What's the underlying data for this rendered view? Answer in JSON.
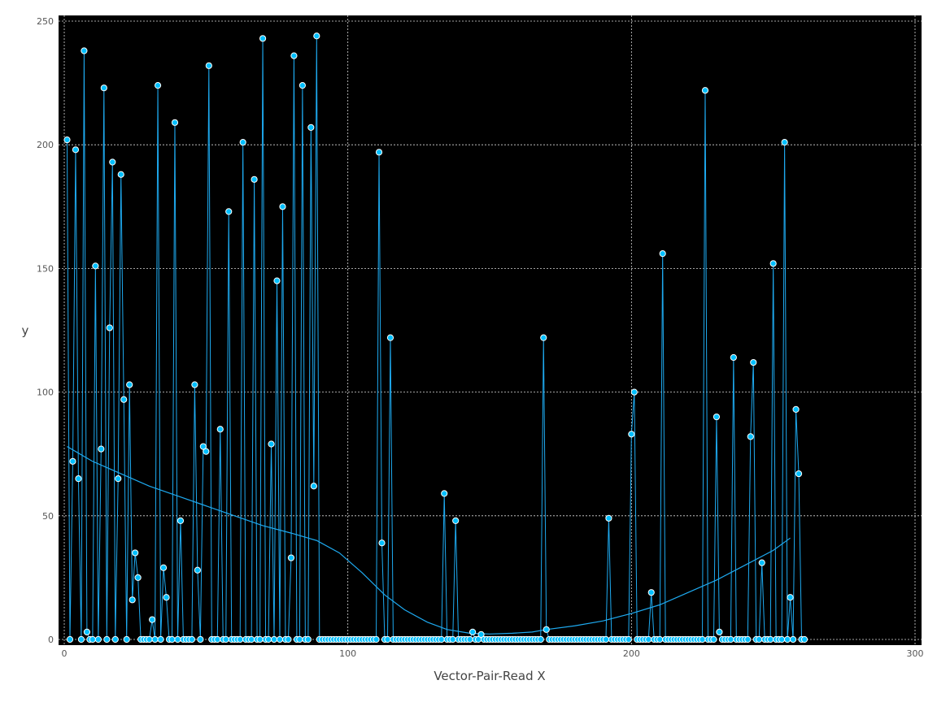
{
  "chart_data": {
    "type": "scatter",
    "xlabel": "Vector-Pair-Read X",
    "ylabel": "y",
    "xlim": [
      0,
      300
    ],
    "ylim": [
      0,
      250
    ],
    "x_ticks": [
      0,
      100,
      200,
      300
    ],
    "y_ticks": [
      0,
      50,
      100,
      150,
      200,
      250
    ],
    "grid": true,
    "background": "#000000",
    "colors": {
      "marker_fill": "#00bfff",
      "marker_edge": "#ffffff",
      "line": "#1eaaf0",
      "grid": "#ffffff"
    },
    "series": [
      {
        "values": [
          [
            1,
            202
          ],
          [
            2,
            0
          ],
          [
            3,
            72
          ],
          [
            4,
            198
          ],
          [
            5,
            65
          ],
          [
            6,
            0
          ],
          [
            7,
            238
          ],
          [
            8,
            3
          ],
          [
            9,
            0
          ],
          [
            10,
            0
          ],
          [
            11,
            151
          ],
          [
            12,
            0
          ],
          [
            13,
            77
          ],
          [
            14,
            223
          ],
          [
            15,
            0
          ],
          [
            16,
            126
          ],
          [
            17,
            193
          ],
          [
            18,
            0
          ],
          [
            19,
            65
          ],
          [
            20,
            188
          ],
          [
            21,
            97
          ],
          [
            22,
            0
          ],
          [
            23,
            103
          ],
          [
            24,
            16
          ],
          [
            25,
            35
          ],
          [
            26,
            25
          ],
          [
            27,
            0
          ],
          [
            28,
            0
          ],
          [
            29,
            0
          ],
          [
            30,
            0
          ],
          [
            31,
            8
          ],
          [
            32,
            0
          ],
          [
            33,
            224
          ],
          [
            34,
            0
          ],
          [
            35,
            29
          ],
          [
            36,
            17
          ],
          [
            37,
            0
          ],
          [
            38,
            0
          ],
          [
            39,
            209
          ],
          [
            40,
            0
          ],
          [
            41,
            48
          ],
          [
            42,
            0
          ],
          [
            43,
            0
          ],
          [
            44,
            0
          ],
          [
            45,
            0
          ],
          [
            46,
            103
          ],
          [
            47,
            28
          ],
          [
            48,
            0
          ],
          [
            49,
            78
          ],
          [
            50,
            76
          ],
          [
            51,
            232
          ],
          [
            52,
            0
          ],
          [
            53,
            0
          ],
          [
            54,
            0
          ],
          [
            55,
            85
          ],
          [
            56,
            0
          ],
          [
            57,
            0
          ],
          [
            58,
            173
          ],
          [
            59,
            0
          ],
          [
            60,
            0
          ],
          [
            61,
            0
          ],
          [
            62,
            0
          ],
          [
            63,
            201
          ],
          [
            64,
            0
          ],
          [
            65,
            0
          ],
          [
            66,
            0
          ],
          [
            67,
            186
          ],
          [
            68,
            0
          ],
          [
            69,
            0
          ],
          [
            70,
            243
          ],
          [
            71,
            0
          ],
          [
            72,
            0
          ],
          [
            73,
            79
          ],
          [
            74,
            0
          ],
          [
            75,
            145
          ],
          [
            76,
            0
          ],
          [
            77,
            175
          ],
          [
            78,
            0
          ],
          [
            79,
            0
          ],
          [
            80,
            33
          ],
          [
            81,
            236
          ],
          [
            82,
            0
          ],
          [
            83,
            0
          ],
          [
            84,
            224
          ],
          [
            85,
            0
          ],
          [
            86,
            0
          ],
          [
            87,
            207
          ],
          [
            88,
            62
          ],
          [
            89,
            244
          ],
          [
            90,
            0
          ],
          [
            91,
            0
          ],
          [
            92,
            0
          ],
          [
            93,
            0
          ],
          [
            94,
            0
          ],
          [
            95,
            0
          ],
          [
            96,
            0
          ],
          [
            97,
            0
          ],
          [
            98,
            0
          ],
          [
            99,
            0
          ],
          [
            100,
            0
          ],
          [
            101,
            0
          ],
          [
            102,
            0
          ],
          [
            103,
            0
          ],
          [
            104,
            0
          ],
          [
            105,
            0
          ],
          [
            106,
            0
          ],
          [
            107,
            0
          ],
          [
            108,
            0
          ],
          [
            109,
            0
          ],
          [
            110,
            0
          ],
          [
            111,
            197
          ],
          [
            112,
            39
          ],
          [
            113,
            0
          ],
          [
            114,
            0
          ],
          [
            115,
            122
          ],
          [
            116,
            0
          ],
          [
            117,
            0
          ],
          [
            118,
            0
          ],
          [
            119,
            0
          ],
          [
            120,
            0
          ],
          [
            121,
            0
          ],
          [
            122,
            0
          ],
          [
            123,
            0
          ],
          [
            124,
            0
          ],
          [
            125,
            0
          ],
          [
            126,
            0
          ],
          [
            127,
            0
          ],
          [
            128,
            0
          ],
          [
            129,
            0
          ],
          [
            130,
            0
          ],
          [
            131,
            0
          ],
          [
            132,
            0
          ],
          [
            133,
            0
          ],
          [
            134,
            59
          ],
          [
            135,
            0
          ],
          [
            136,
            0
          ],
          [
            137,
            0
          ],
          [
            138,
            48
          ],
          [
            139,
            0
          ],
          [
            140,
            0
          ],
          [
            141,
            0
          ],
          [
            142,
            0
          ],
          [
            143,
            0
          ],
          [
            144,
            3
          ],
          [
            145,
            0
          ],
          [
            146,
            0
          ],
          [
            147,
            2
          ],
          [
            148,
            0
          ],
          [
            149,
            0
          ],
          [
            150,
            0
          ],
          [
            151,
            0
          ],
          [
            152,
            0
          ],
          [
            153,
            0
          ],
          [
            154,
            0
          ],
          [
            155,
            0
          ],
          [
            156,
            0
          ],
          [
            157,
            0
          ],
          [
            158,
            0
          ],
          [
            159,
            0
          ],
          [
            160,
            0
          ],
          [
            161,
            0
          ],
          [
            162,
            0
          ],
          [
            163,
            0
          ],
          [
            164,
            0
          ],
          [
            165,
            0
          ],
          [
            166,
            0
          ],
          [
            167,
            0
          ],
          [
            168,
            0
          ],
          [
            169,
            122
          ],
          [
            170,
            4
          ],
          [
            171,
            0
          ],
          [
            172,
            0
          ],
          [
            173,
            0
          ],
          [
            174,
            0
          ],
          [
            175,
            0
          ],
          [
            176,
            0
          ],
          [
            177,
            0
          ],
          [
            178,
            0
          ],
          [
            179,
            0
          ],
          [
            180,
            0
          ],
          [
            181,
            0
          ],
          [
            182,
            0
          ],
          [
            183,
            0
          ],
          [
            184,
            0
          ],
          [
            185,
            0
          ],
          [
            186,
            0
          ],
          [
            187,
            0
          ],
          [
            188,
            0
          ],
          [
            189,
            0
          ],
          [
            190,
            0
          ],
          [
            191,
            0
          ],
          [
            192,
            49
          ],
          [
            193,
            0
          ],
          [
            194,
            0
          ],
          [
            195,
            0
          ],
          [
            196,
            0
          ],
          [
            197,
            0
          ],
          [
            198,
            0
          ],
          [
            199,
            0
          ],
          [
            200,
            83
          ],
          [
            201,
            100
          ],
          [
            202,
            0
          ],
          [
            203,
            0
          ],
          [
            204,
            0
          ],
          [
            205,
            0
          ],
          [
            206,
            0
          ],
          [
            207,
            19
          ],
          [
            208,
            0
          ],
          [
            209,
            0
          ],
          [
            210,
            0
          ],
          [
            211,
            156
          ],
          [
            212,
            0
          ],
          [
            213,
            0
          ],
          [
            214,
            0
          ],
          [
            215,
            0
          ],
          [
            216,
            0
          ],
          [
            217,
            0
          ],
          [
            218,
            0
          ],
          [
            219,
            0
          ],
          [
            220,
            0
          ],
          [
            221,
            0
          ],
          [
            222,
            0
          ],
          [
            223,
            0
          ],
          [
            224,
            0
          ],
          [
            225,
            0
          ],
          [
            226,
            222
          ],
          [
            227,
            0
          ],
          [
            228,
            0
          ],
          [
            229,
            0
          ],
          [
            230,
            90
          ],
          [
            231,
            3
          ],
          [
            232,
            0
          ],
          [
            233,
            0
          ],
          [
            234,
            0
          ],
          [
            235,
            0
          ],
          [
            236,
            114
          ],
          [
            237,
            0
          ],
          [
            238,
            0
          ],
          [
            239,
            0
          ],
          [
            240,
            0
          ],
          [
            241,
            0
          ],
          [
            242,
            82
          ],
          [
            243,
            112
          ],
          [
            244,
            0
          ],
          [
            245,
            0
          ],
          [
            246,
            31
          ],
          [
            247,
            0
          ],
          [
            248,
            0
          ],
          [
            249,
            0
          ],
          [
            250,
            152
          ],
          [
            251,
            0
          ],
          [
            252,
            0
          ],
          [
            253,
            0
          ],
          [
            254,
            201
          ],
          [
            255,
            0
          ],
          [
            256,
            17
          ],
          [
            257,
            0
          ],
          [
            258,
            93
          ],
          [
            259,
            67
          ],
          [
            260,
            0
          ],
          [
            261,
            0
          ]
        ]
      },
      {
        "type": "line",
        "values": [
          [
            1,
            78
          ],
          [
            10,
            72
          ],
          [
            20,
            67
          ],
          [
            30,
            62
          ],
          [
            40,
            58
          ],
          [
            50,
            54
          ],
          [
            60,
            50
          ],
          [
            70,
            46
          ],
          [
            80,
            43
          ],
          [
            89,
            40
          ],
          [
            97,
            35
          ],
          [
            105,
            27
          ],
          [
            113,
            18
          ],
          [
            120,
            12
          ],
          [
            128,
            7
          ],
          [
            135,
            4
          ],
          [
            143,
            2.5
          ],
          [
            150,
            2.2
          ],
          [
            158,
            2.5
          ],
          [
            165,
            3
          ],
          [
            170,
            4
          ],
          [
            180,
            5.5
          ],
          [
            190,
            7.5
          ],
          [
            200,
            10.5
          ],
          [
            210,
            14
          ],
          [
            220,
            19
          ],
          [
            230,
            24
          ],
          [
            240,
            30
          ],
          [
            250,
            36
          ],
          [
            256,
            41
          ]
        ]
      }
    ]
  }
}
